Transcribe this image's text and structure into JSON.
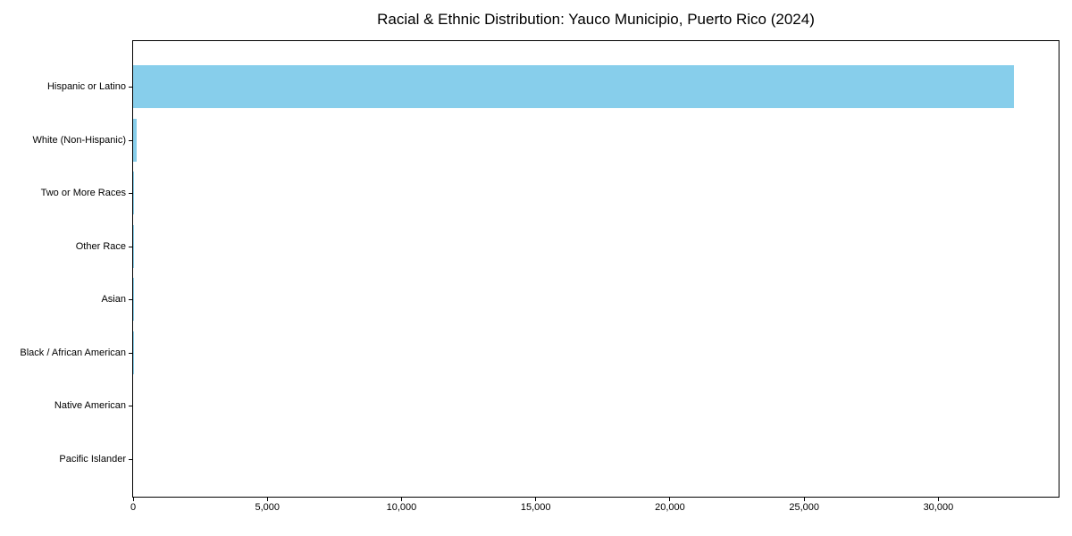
{
  "chart_data": {
    "type": "bar",
    "orientation": "horizontal",
    "title": "Racial & Ethnic Distribution: Yauco Municipio, Puerto Rico (2024)",
    "categories": [
      "Hispanic or Latino",
      "White (Non-Hispanic)",
      "Two or More Races",
      "Other Race",
      "Asian",
      "Black / African American",
      "Native American",
      "Pacific Islander"
    ],
    "values": [
      32825,
      130,
      33,
      10,
      8,
      5,
      2,
      0
    ],
    "xlabel": "",
    "ylabel": "",
    "xlim": [
      0,
      34480
    ],
    "xticks": [
      0,
      5000,
      10000,
      15000,
      20000,
      25000,
      30000
    ],
    "xtick_labels": [
      "0",
      "5,000",
      "10,000",
      "15,000",
      "20,000",
      "25,000",
      "30,000"
    ],
    "bar_color": "#87CEEB",
    "text_color": "#000000",
    "grid": false,
    "legend": false
  }
}
